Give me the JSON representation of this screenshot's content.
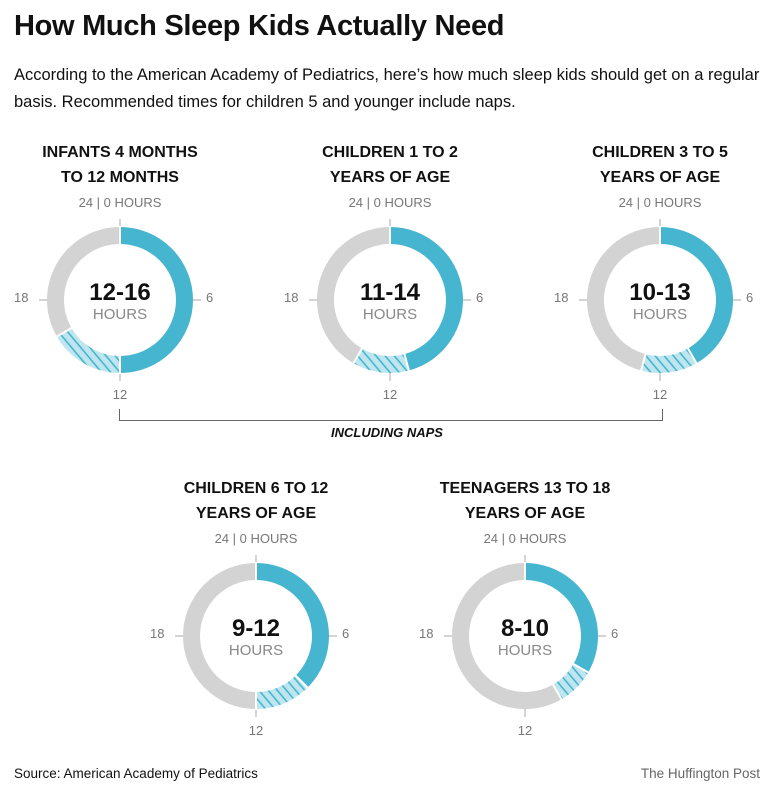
{
  "title": "How Much Sleep Kids Actually Need",
  "subtitle": "According to the American Academy of Pediatrics, here’s how much sleep kids should get on a regular basis. Recommended times for children 5 and younger include naps.",
  "colors": {
    "sleep": "#46b5cf",
    "nap_hatch": "#46b5cf",
    "awake": "#d3d3d3"
  },
  "chart_data": [
    {
      "type": "pie",
      "title_lines": [
        "INFANTS 4 MONTHS",
        "TO 12 MONTHS"
      ],
      "min_hours": 12,
      "max_hours": 16,
      "range_label": "12-16",
      "unit": "HOURS",
      "ticks": {
        "top": "24 | 0 HOURS",
        "right": "6",
        "bottom": "12",
        "left": "18"
      },
      "total_hours": 24
    },
    {
      "type": "pie",
      "title_lines": [
        "CHILDREN 1 TO 2",
        "YEARS OF AGE"
      ],
      "min_hours": 11,
      "max_hours": 14,
      "range_label": "11-14",
      "unit": "HOURS",
      "ticks": {
        "top": "24 | 0 HOURS",
        "right": "6",
        "bottom": "12",
        "left": "18"
      },
      "total_hours": 24
    },
    {
      "type": "pie",
      "title_lines": [
        "CHILDREN 3 TO 5",
        "YEARS OF AGE"
      ],
      "min_hours": 10,
      "max_hours": 13,
      "range_label": "10-13",
      "unit": "HOURS",
      "ticks": {
        "top": "24 | 0 HOURS",
        "right": "6",
        "bottom": "12",
        "left": "18"
      },
      "total_hours": 24
    },
    {
      "type": "pie",
      "title_lines": [
        "CHILDREN 6 TO 12",
        "YEARS OF AGE"
      ],
      "min_hours": 9,
      "max_hours": 12,
      "range_label": "9-12",
      "unit": "HOURS",
      "ticks": {
        "top": "24 | 0 HOURS",
        "right": "6",
        "bottom": "12",
        "left": "18"
      },
      "total_hours": 24
    },
    {
      "type": "pie",
      "title_lines": [
        "TEENAGERS 13 TO 18",
        "YEARS OF AGE"
      ],
      "min_hours": 8,
      "max_hours": 10,
      "range_label": "8-10",
      "unit": "HOURS",
      "ticks": {
        "top": "24 | 0 HOURS",
        "right": "6",
        "bottom": "12",
        "left": "18"
      },
      "total_hours": 24
    }
  ],
  "naps_label": "INCLUDING NAPS",
  "source": "Source: American Academy of Pediatrics",
  "credit": "The Huffington Post"
}
